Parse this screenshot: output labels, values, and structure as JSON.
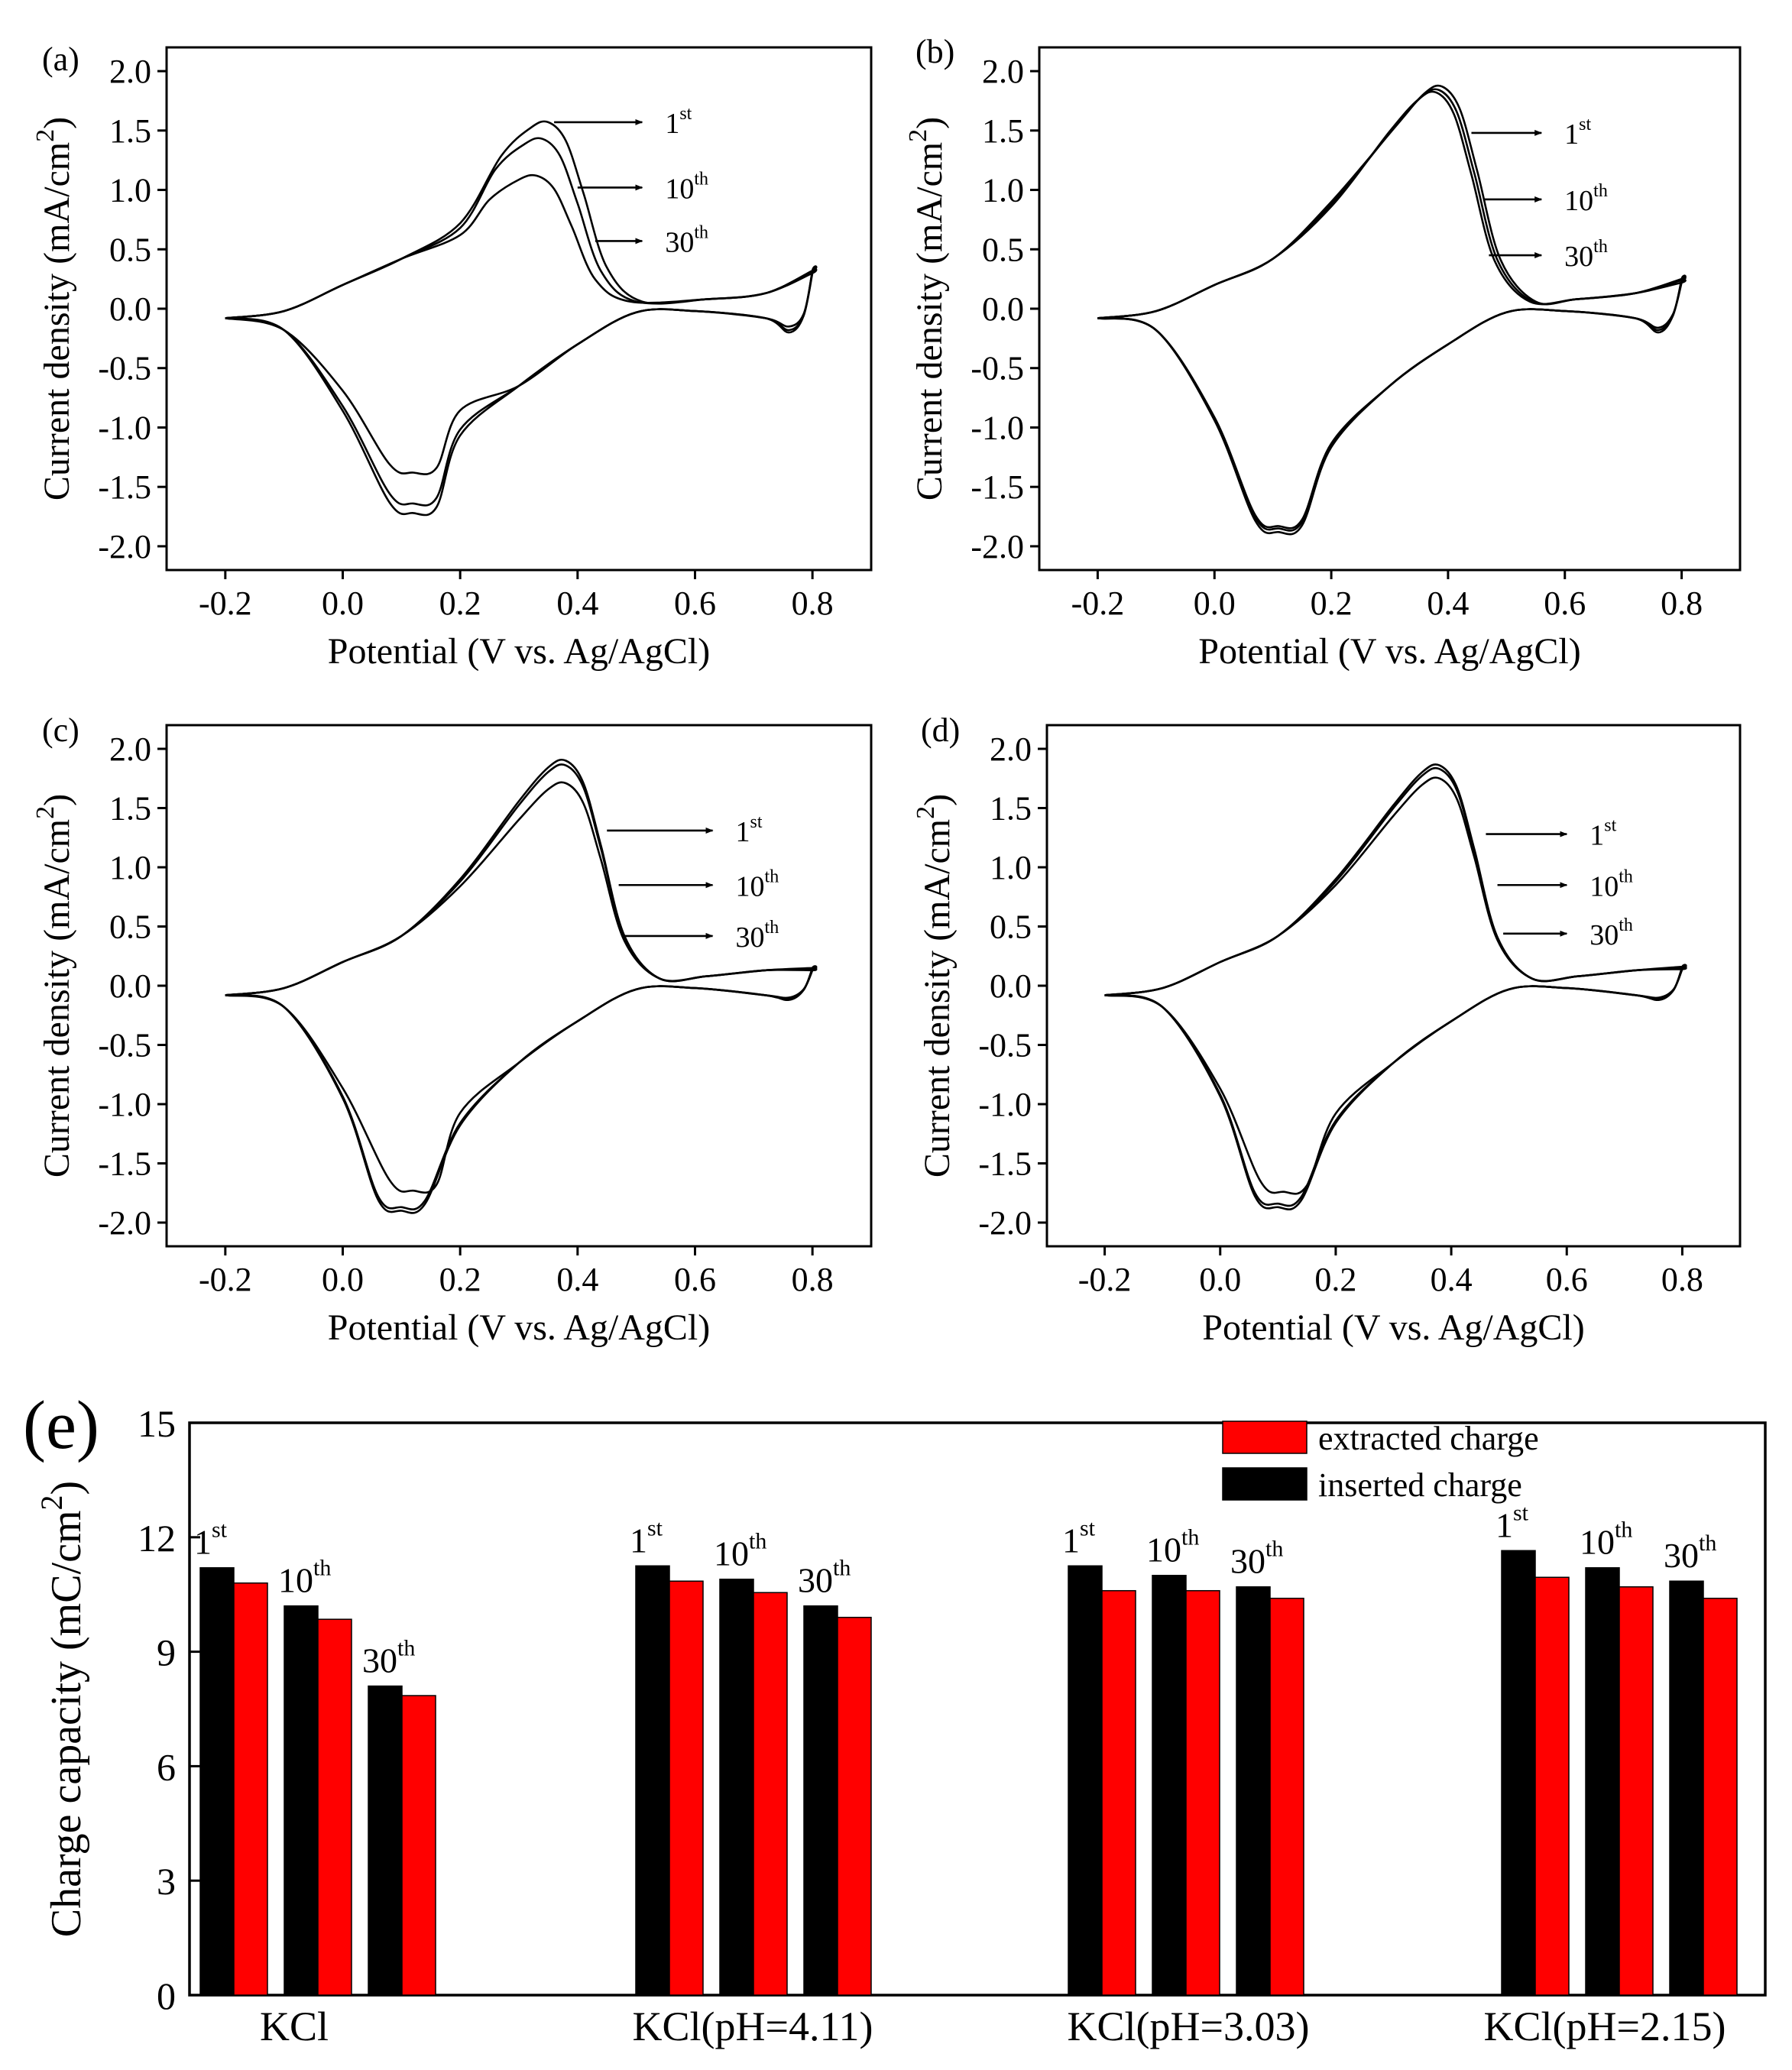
{
  "chart_data": [
    {
      "panel": "(a)",
      "type": "line",
      "title": "",
      "xlabel": "Potential (V vs. Ag/AgCl)",
      "ylabel_main": "Current density (mA/cm",
      "ylabel_sup": "2",
      "ylabel_end": ")",
      "xlim": [
        -0.3,
        0.9
      ],
      "ylim": [
        -2.2,
        2.2
      ],
      "xticks": [
        "-0.2",
        "0.0",
        "0.2",
        "0.4",
        "0.6",
        "0.8"
      ],
      "xtick_values": [
        -0.2,
        0.0,
        0.2,
        0.4,
        0.6,
        0.8
      ],
      "yticks": [
        "2.0",
        "1.5",
        "1.0",
        "0.5",
        "0.0",
        "-0.5",
        "-1.0",
        "-1.5",
        "-2.0"
      ],
      "ytick_values": [
        2.0,
        1.5,
        1.0,
        0.5,
        0.0,
        -0.5,
        -1.0,
        -1.5,
        -2.0
      ],
      "series": [
        {
          "name": "1st",
          "anodic_peak": [
            0.35,
            1.57
          ],
          "cathodic_peak": [
            0.12,
            -1.72
          ],
          "end_current": 0.32,
          "switch_dip": -0.2,
          "forward_shoulder": 0.72
        },
        {
          "name": "10th",
          "anodic_peak": [
            0.34,
            1.43
          ],
          "cathodic_peak": [
            0.12,
            -1.64
          ],
          "end_current": 0.32,
          "switch_dip": -0.18,
          "forward_shoulder": 0.68
        },
        {
          "name": "30th",
          "anodic_peak": [
            0.33,
            1.12
          ],
          "cathodic_peak": [
            0.12,
            -1.38
          ],
          "end_current": 0.3,
          "switch_dip": -0.15,
          "forward_shoulder": 0.62
        }
      ],
      "annotations": [
        {
          "base": "1",
          "sup": "st",
          "arrow_from": [
            0.36,
            1.57
          ],
          "arrow_to": [
            0.51,
            1.57
          ]
        },
        {
          "base": "10",
          "sup": "th",
          "arrow_from": [
            0.4,
            1.02
          ],
          "arrow_to": [
            0.51,
            1.02
          ]
        },
        {
          "base": "30",
          "sup": "th",
          "arrow_from": [
            0.43,
            0.57
          ],
          "arrow_to": [
            0.51,
            0.57
          ]
        }
      ]
    },
    {
      "panel": "(b)",
      "type": "line",
      "title": "",
      "xlabel": "Potential (V vs. Ag/AgCl)",
      "ylabel_main": "Current density (mA/cm",
      "ylabel_sup": "2",
      "ylabel_end": ")",
      "xlim": [
        -0.3,
        0.9
      ],
      "ylim": [
        -2.2,
        2.2
      ],
      "xticks": [
        "-0.2",
        "0.0",
        "0.2",
        "0.4",
        "0.6",
        "0.8"
      ],
      "xtick_values": [
        -0.2,
        0.0,
        0.2,
        0.4,
        0.6,
        0.8
      ],
      "yticks": [
        "2.0",
        "1.5",
        "1.0",
        "0.5",
        "0.0",
        "-0.5",
        "-1.0",
        "-1.5",
        "-2.0"
      ],
      "ytick_values": [
        2.0,
        1.5,
        1.0,
        0.5,
        0.0,
        -0.5,
        -1.0,
        -1.5,
        -2.0
      ],
      "series": [
        {
          "name": "1st",
          "anodic_peak": [
            0.39,
            1.87
          ],
          "cathodic_peak": [
            0.11,
            -1.88
          ],
          "end_current": 0.25,
          "switch_dip": -0.2,
          "forward_shoulder": 0.9
        },
        {
          "name": "10th",
          "anodic_peak": [
            0.385,
            1.84
          ],
          "cathodic_peak": [
            0.11,
            -1.85
          ],
          "end_current": 0.24,
          "switch_dip": -0.18,
          "forward_shoulder": 0.88
        },
        {
          "name": "30th",
          "anodic_peak": [
            0.38,
            1.82
          ],
          "cathodic_peak": [
            0.11,
            -1.83
          ],
          "end_current": 0.22,
          "switch_dip": -0.16,
          "forward_shoulder": 0.86
        }
      ],
      "annotations": [
        {
          "base": "1",
          "sup": "st",
          "arrow_from": [
            0.44,
            1.48
          ],
          "arrow_to": [
            0.56,
            1.48
          ]
        },
        {
          "base": "10",
          "sup": "th",
          "arrow_from": [
            0.46,
            0.92
          ],
          "arrow_to": [
            0.56,
            0.92
          ]
        },
        {
          "base": "30",
          "sup": "th",
          "arrow_from": [
            0.47,
            0.45
          ],
          "arrow_to": [
            0.56,
            0.45
          ]
        }
      ]
    },
    {
      "panel": "(c)",
      "type": "line",
      "title": "",
      "xlabel": "Potential (V vs. Ag/AgCl)",
      "ylabel_main": "Current density (mA/cm",
      "ylabel_sup": "2",
      "ylabel_end": ")",
      "xlim": [
        -0.3,
        0.9
      ],
      "ylim": [
        -2.2,
        2.2
      ],
      "xticks": [
        "-0.2",
        "0.0",
        "0.2",
        "0.4",
        "0.6",
        "0.8"
      ],
      "xtick_values": [
        -0.2,
        0.0,
        0.2,
        0.4,
        0.6,
        0.8
      ],
      "yticks": [
        "2.0",
        "1.5",
        "1.0",
        "0.5",
        "0.0",
        "-0.5",
        "-1.0",
        "-1.5",
        "-2.0"
      ],
      "ytick_values": [
        2.0,
        1.5,
        1.0,
        0.5,
        0.0,
        -0.5,
        -1.0,
        -1.5,
        -2.0
      ],
      "series": [
        {
          "name": "1st",
          "anodic_peak": [
            0.38,
            1.9
          ],
          "cathodic_peak": [
            0.1,
            -1.9
          ],
          "end_current": 0.15,
          "switch_dip": -0.12,
          "forward_shoulder": 0.9
        },
        {
          "name": "10th",
          "anodic_peak": [
            0.38,
            1.86
          ],
          "cathodic_peak": [
            0.1,
            -1.87
          ],
          "end_current": 0.14,
          "switch_dip": -0.11,
          "forward_shoulder": 0.88
        },
        {
          "name": "30th",
          "anodic_peak": [
            0.38,
            1.71
          ],
          "cathodic_peak": [
            0.12,
            -1.73
          ],
          "end_current": 0.13,
          "switch_dip": -0.1,
          "forward_shoulder": 0.84
        }
      ],
      "annotations": [
        {
          "base": "1",
          "sup": "st",
          "arrow_from": [
            0.45,
            1.31
          ],
          "arrow_to": [
            0.63,
            1.31
          ]
        },
        {
          "base": "10",
          "sup": "th",
          "arrow_from": [
            0.47,
            0.85
          ],
          "arrow_to": [
            0.63,
            0.85
          ]
        },
        {
          "base": "30",
          "sup": "th",
          "arrow_from": [
            0.48,
            0.42
          ],
          "arrow_to": [
            0.63,
            0.42
          ]
        }
      ]
    },
    {
      "panel": "(d)",
      "type": "line",
      "title": "",
      "xlabel": "Potential (V vs. Ag/AgCl)",
      "ylabel_main": "Current density (mA/cm",
      "ylabel_sup": "2",
      "ylabel_end": ")",
      "xlim": [
        -0.3,
        0.9
      ],
      "ylim": [
        -2.2,
        2.2
      ],
      "xticks": [
        "-0.2",
        "0.0",
        "0.2",
        "0.4",
        "0.6",
        "0.8"
      ],
      "xtick_values": [
        -0.2,
        0.0,
        0.2,
        0.4,
        0.6,
        0.8
      ],
      "yticks": [
        "2.0",
        "1.5",
        "1.0",
        "0.5",
        "0.0",
        "-0.5",
        "-1.0",
        "-1.5",
        "-2.0"
      ],
      "ytick_values": [
        2.0,
        1.5,
        1.0,
        0.5,
        0.0,
        -0.5,
        -1.0,
        -1.5,
        -2.0
      ],
      "series": [
        {
          "name": "1st",
          "anodic_peak": [
            0.38,
            1.86
          ],
          "cathodic_peak": [
            0.1,
            -1.87
          ],
          "end_current": 0.16,
          "switch_dip": -0.12,
          "forward_shoulder": 0.9
        },
        {
          "name": "10th",
          "anodic_peak": [
            0.38,
            1.83
          ],
          "cathodic_peak": [
            0.1,
            -1.84
          ],
          "end_current": 0.15,
          "switch_dip": -0.11,
          "forward_shoulder": 0.88
        },
        {
          "name": "30th",
          "anodic_peak": [
            0.38,
            1.75
          ],
          "cathodic_peak": [
            0.11,
            -1.74
          ],
          "end_current": 0.14,
          "switch_dip": -0.1,
          "forward_shoulder": 0.85
        }
      ],
      "annotations": [
        {
          "base": "1",
          "sup": "st",
          "arrow_from": [
            0.46,
            1.28
          ],
          "arrow_to": [
            0.6,
            1.28
          ]
        },
        {
          "base": "10",
          "sup": "th",
          "arrow_from": [
            0.48,
            0.85
          ],
          "arrow_to": [
            0.6,
            0.85
          ]
        },
        {
          "base": "30",
          "sup": "th",
          "arrow_from": [
            0.49,
            0.44
          ],
          "arrow_to": [
            0.6,
            0.44
          ]
        }
      ]
    },
    {
      "panel": "(e)",
      "type": "bar",
      "title": "",
      "xlabel": "",
      "ylabel_main": "Charge capacity (mC/cm",
      "ylabel_sup": "2",
      "ylabel_end": ")",
      "ylim": [
        0,
        15
      ],
      "yticks": [
        "15",
        "12",
        "9",
        "6",
        "3",
        "0"
      ],
      "ytick_values": [
        15,
        12,
        9,
        6,
        3,
        0
      ],
      "categories": [
        "KCl",
        "KCl(pH=4.11)",
        "KCl(pH=3.03)",
        "KCl(pH=2.15)"
      ],
      "cycles": [
        {
          "base": "1",
          "sup": "st"
        },
        {
          "base": "10",
          "sup": "th"
        },
        {
          "base": "30",
          "sup": "th"
        }
      ],
      "series": [
        {
          "name": "inserted charge",
          "color": "#000000",
          "values": [
            [
              11.2,
              10.2,
              8.1
            ],
            [
              11.25,
              10.9,
              10.2
            ],
            [
              11.25,
              11.0,
              10.7
            ],
            [
              11.65,
              11.2,
              10.85
            ]
          ]
        },
        {
          "name": "extracted charge",
          "color": "#ff0000",
          "values": [
            [
              10.8,
              9.85,
              7.85
            ],
            [
              10.85,
              10.55,
              9.9
            ],
            [
              10.6,
              10.6,
              10.4
            ],
            [
              10.95,
              10.7,
              10.4
            ]
          ]
        }
      ],
      "legend_position": "top-right"
    }
  ]
}
